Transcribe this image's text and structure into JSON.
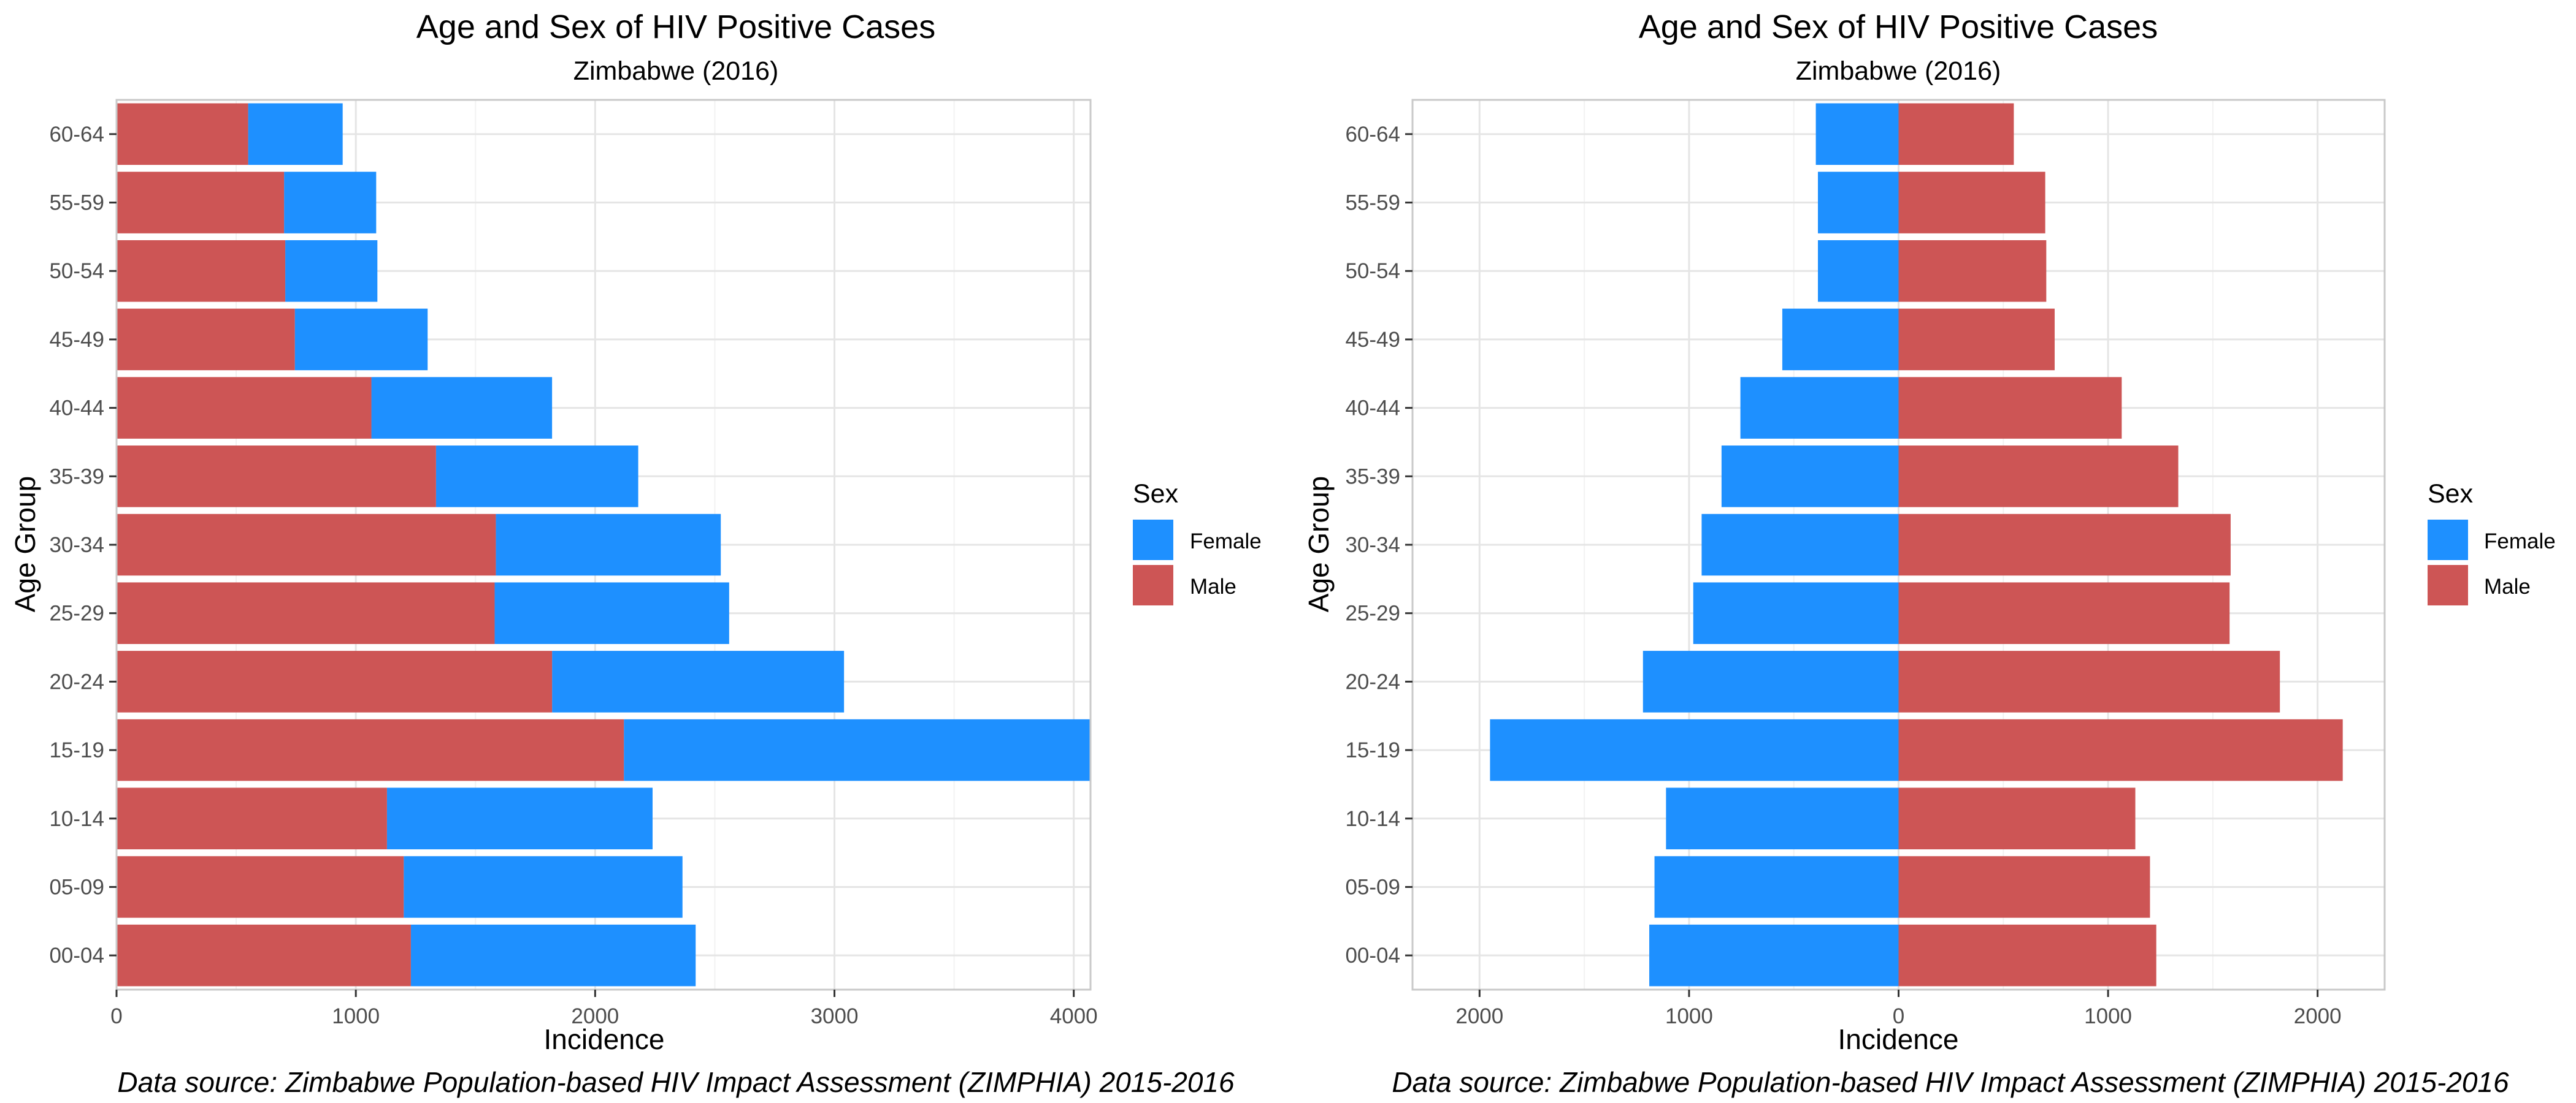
{
  "colors": {
    "female": "#1E90FF",
    "male": "#CD5555",
    "grid_major": "#E5E5E5",
    "grid_minor": "#F2F2F2",
    "panel_border": "#C9C9C9",
    "text": "#000000",
    "tick_text": "#4D4D4D"
  },
  "chart_data": [
    {
      "type": "bar",
      "orientation": "horizontal",
      "stacked": true,
      "title": "Age and Sex of HIV Positive Cases",
      "subtitle": "Zimbabwe (2016)",
      "xlabel": "Incidence",
      "ylabel": "Age Group",
      "caption": "Data source: Zimbabwe Population-based HIV Impact Assessment (ZIMPHIA) 2015-2016",
      "categories": [
        "00-04",
        "05-09",
        "10-14",
        "15-19",
        "20-24",
        "25-29",
        "30-34",
        "35-39",
        "40-44",
        "45-49",
        "50-54",
        "55-59",
        "60-64"
      ],
      "series": [
        {
          "name": "Male",
          "color": "#CD5555",
          "values": [
            1230,
            1200,
            1130,
            2120,
            1820,
            1580,
            1585,
            1335,
            1065,
            745,
            705,
            700,
            550
          ]
        },
        {
          "name": "Female",
          "color": "#1E90FF",
          "values": [
            1190,
            1165,
            1110,
            1950,
            1220,
            980,
            940,
            845,
            755,
            555,
            385,
            385,
            395
          ]
        }
      ],
      "xlim": [
        0,
        4070
      ],
      "x_ticks": [
        0,
        1000,
        2000,
        3000,
        4000
      ],
      "x_tick_labels": [
        "0",
        "1000",
        "2000",
        "3000",
        "4000"
      ],
      "grid": true,
      "legend": {
        "title": "Sex",
        "placement": "right",
        "entries": [
          {
            "label": "Female",
            "color": "#1E90FF"
          },
          {
            "label": "Male",
            "color": "#CD5555"
          }
        ]
      }
    },
    {
      "type": "bar",
      "orientation": "horizontal",
      "diverging": true,
      "title": "Age and Sex of HIV Positive Cases",
      "subtitle": "Zimbabwe (2016)",
      "xlabel": "Incidence",
      "ylabel": "Age Group",
      "caption": "Data source: Zimbabwe Population-based HIV Impact Assessment (ZIMPHIA) 2015-2016",
      "categories": [
        "00-04",
        "05-09",
        "10-14",
        "15-19",
        "20-24",
        "25-29",
        "30-34",
        "35-39",
        "40-44",
        "45-49",
        "50-54",
        "55-59",
        "60-64"
      ],
      "series": [
        {
          "name": "Female",
          "color": "#1E90FF",
          "values": [
            -1190,
            -1165,
            -1110,
            -1950,
            -1220,
            -980,
            -940,
            -845,
            -755,
            -555,
            -385,
            -385,
            -395
          ]
        },
        {
          "name": "Male",
          "color": "#CD5555",
          "values": [
            1230,
            1200,
            1130,
            2120,
            1820,
            1580,
            1585,
            1335,
            1065,
            745,
            705,
            700,
            550
          ]
        }
      ],
      "xlim": [
        -2320,
        2320
      ],
      "x_ticks": [
        -2000,
        -1000,
        0,
        1000,
        2000
      ],
      "x_tick_labels": [
        "2000",
        "1000",
        "0",
        "1000",
        "2000"
      ],
      "grid": true,
      "legend": {
        "title": "Sex",
        "placement": "right",
        "entries": [
          {
            "label": "Female",
            "color": "#1E90FF"
          },
          {
            "label": "Male",
            "color": "#CD5555"
          }
        ]
      }
    }
  ]
}
